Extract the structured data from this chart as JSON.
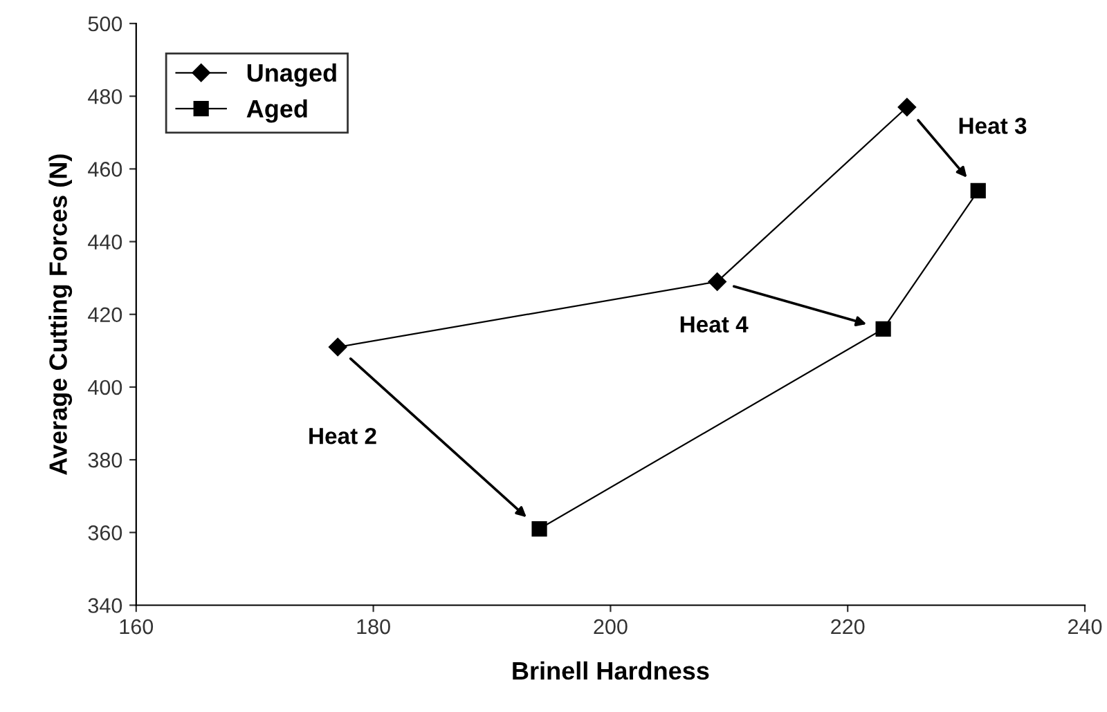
{
  "chart_data": {
    "type": "line",
    "xlabel": "Brinell Hardness",
    "ylabel": "Average Cutting Forces (N)",
    "xlim": [
      160,
      240
    ],
    "xticks": [
      160,
      180,
      200,
      220,
      240
    ],
    "ylim": [
      340,
      500
    ],
    "yticks": [
      340,
      360,
      380,
      400,
      420,
      440,
      460,
      480,
      500
    ],
    "grid": false,
    "legend": "top left",
    "line_style": "solid",
    "series": [
      {
        "name": "Unaged",
        "color": "#000000",
        "marker": "diamond",
        "x": [
          177,
          209,
          225
        ],
        "values": [
          411,
          429,
          477
        ]
      },
      {
        "name": "Aged",
        "color": "#000000",
        "marker": "square",
        "x": [
          194,
          223,
          231
        ],
        "values": [
          361,
          416,
          454
        ]
      }
    ],
    "annotations": [
      "Heat 2",
      "Heat 4",
      "Heat 3"
    ]
  }
}
